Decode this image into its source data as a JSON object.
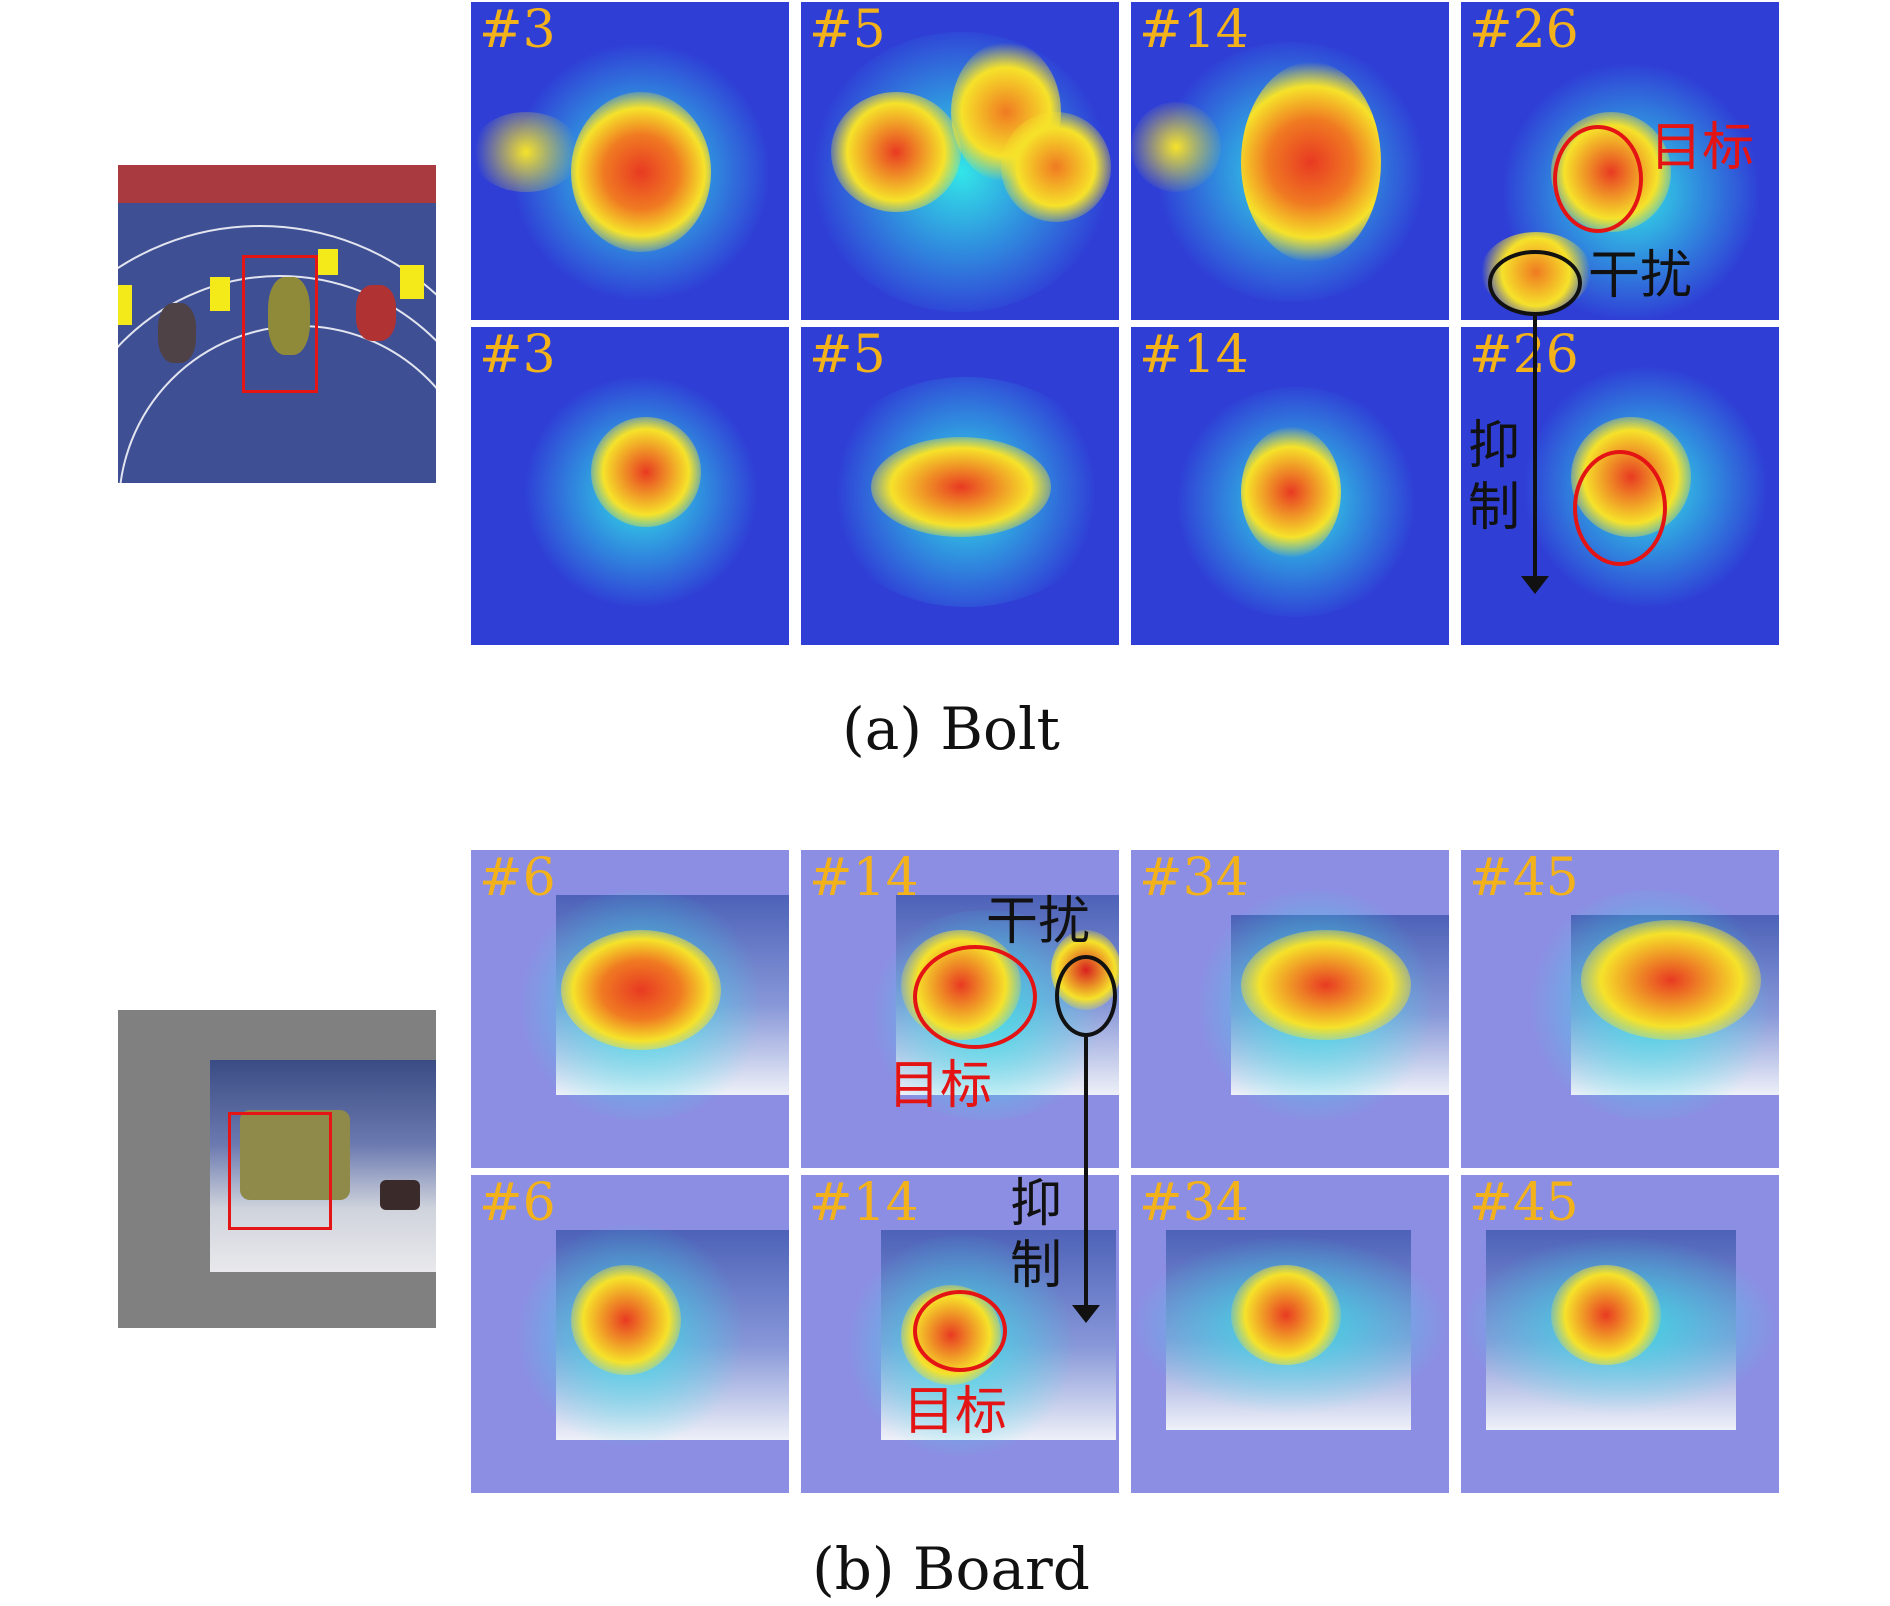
{
  "section_a": {
    "caption": "(a) Bolt",
    "row1_labels": [
      "#3",
      "#5",
      "#14",
      "#26"
    ],
    "row2_labels": [
      "#3",
      "#5",
      "#14",
      "#26"
    ]
  },
  "section_b": {
    "caption": "(b) Board",
    "row1_labels": [
      "#6",
      "#14",
      "#34",
      "#45"
    ],
    "row2_labels": [
      "#6",
      "#14",
      "#34",
      "#45"
    ]
  },
  "annotations": {
    "target": "目标",
    "distractor": "干扰",
    "suppress_1": "抑",
    "suppress_2": "制"
  },
  "colors": {
    "label": "#f3b21a",
    "target": "#e41414",
    "distractor": "#111111"
  }
}
